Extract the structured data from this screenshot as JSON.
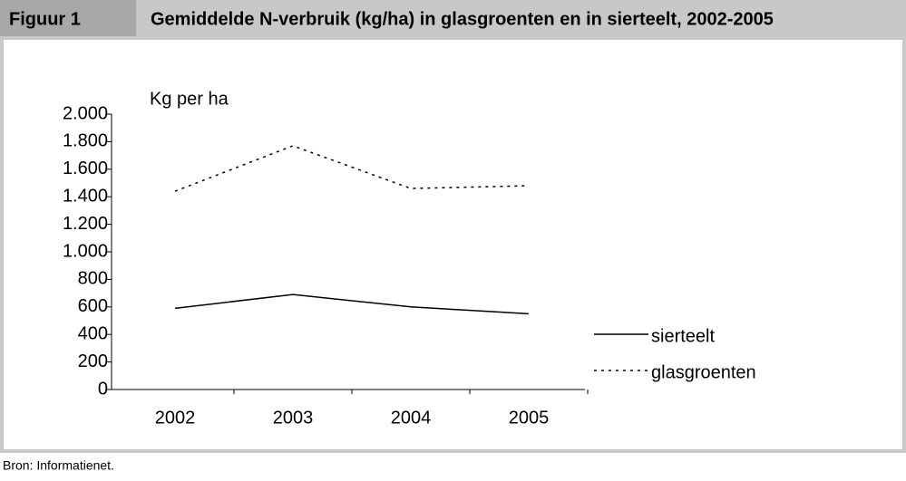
{
  "header": {
    "label": "Figuur 1",
    "title": "Gemiddelde N-verbruik (kg/ha) in glasgroenten en in sierteelt, 2002-2005"
  },
  "chart_data": {
    "type": "line",
    "y_label": "Kg per ha",
    "categories": [
      "2002",
      "2003",
      "2004",
      "2005"
    ],
    "series": [
      {
        "name": "sierteelt",
        "color": "#000000",
        "style": "solid",
        "values": [
          590,
          690,
          600,
          550
        ]
      },
      {
        "name": "glasgroenten",
        "color": "#000000",
        "style": "dotted",
        "values": [
          1440,
          1770,
          1460,
          1480
        ]
      }
    ],
    "ylim": [
      0,
      2000
    ],
    "yticks": [
      0,
      200,
      400,
      600,
      800,
      {
        "value": 1000,
        "label": "1.000"
      },
      {
        "value": 1200,
        "label": "1.200"
      },
      {
        "value": 1400,
        "label": "1.400"
      },
      {
        "value": 1600,
        "label": "1.600"
      },
      {
        "value": 1800,
        "label": "1.800"
      },
      {
        "value": 2000,
        "label": "2.000"
      }
    ],
    "legend": "right"
  },
  "source": "Bron: Informatienet."
}
